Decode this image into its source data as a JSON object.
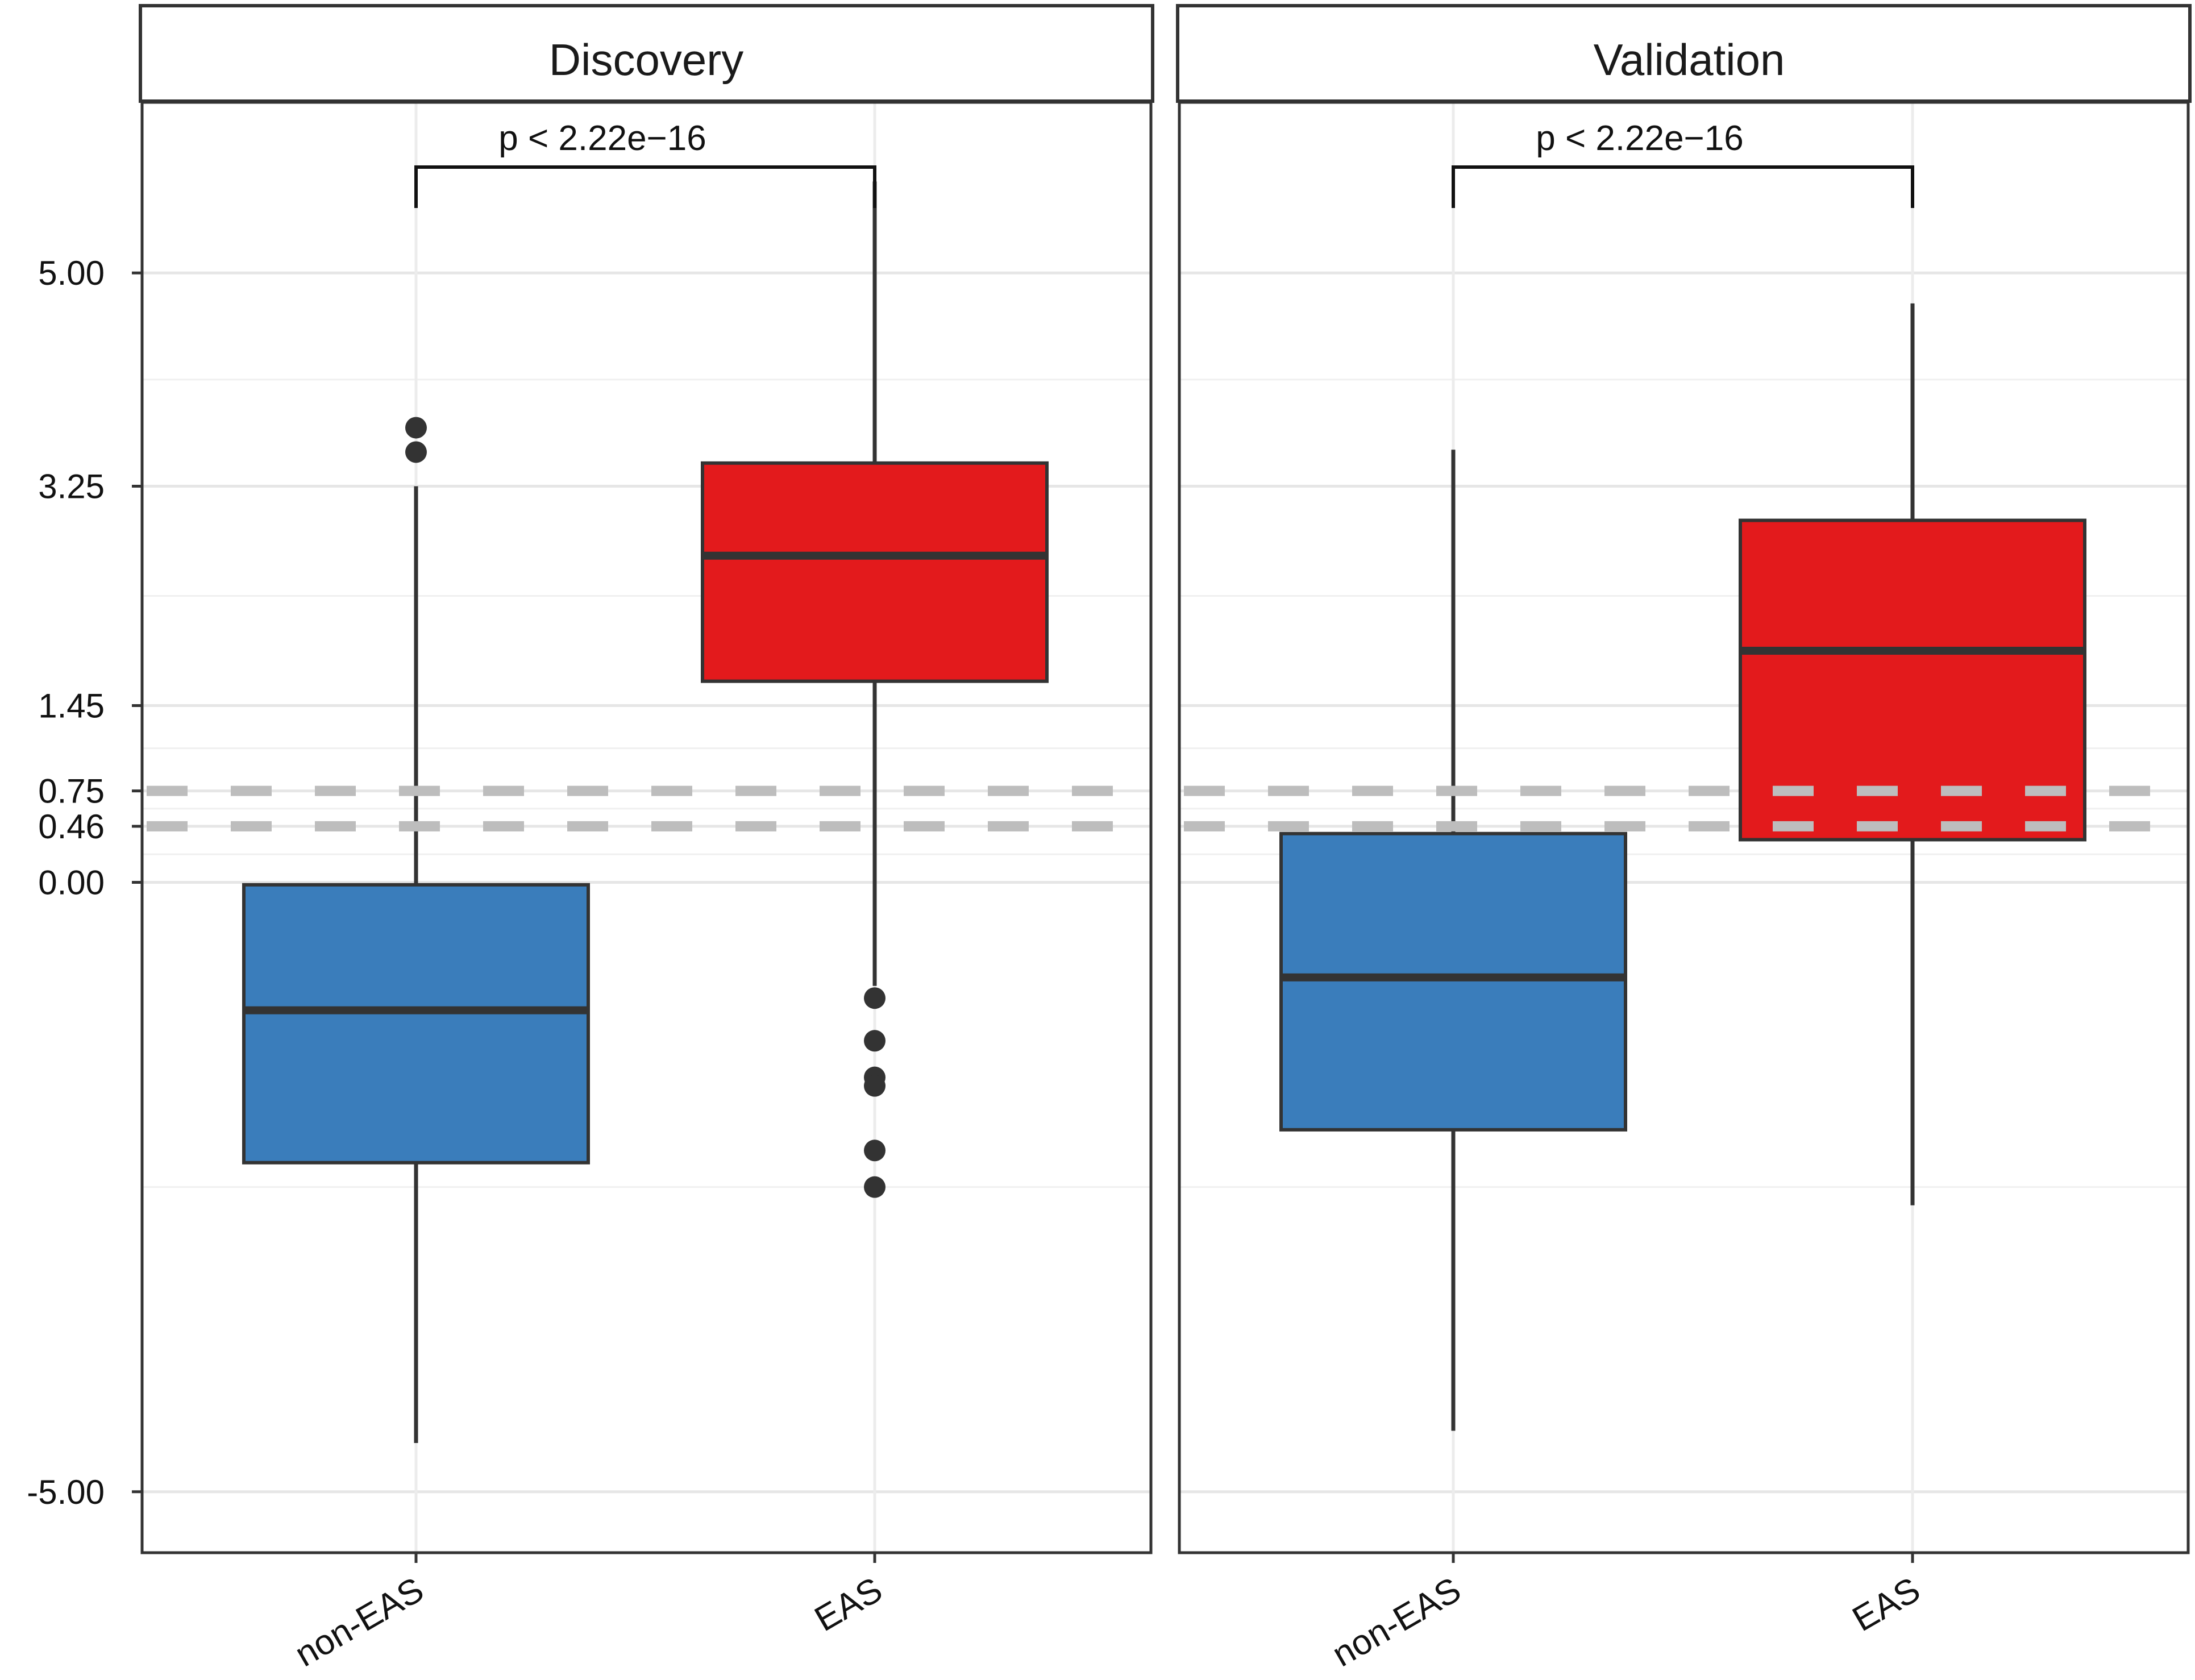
{
  "chart_data": {
    "type": "boxplot",
    "facets": [
      "Discovery",
      "Validation"
    ],
    "categories": [
      "non-EAS",
      "EAS"
    ],
    "y_ticks": [
      {
        "value": 5.0,
        "label": "5.00"
      },
      {
        "value": 3.25,
        "label": "3.25"
      },
      {
        "value": 1.45,
        "label": "1.45"
      },
      {
        "value": 0.75,
        "label": "0.75"
      },
      {
        "value": 0.46,
        "label": "0.46"
      },
      {
        "value": 0.0,
        "label": "0.00"
      },
      {
        "value": -5.0,
        "label": "-5.00"
      }
    ],
    "ylim": [
      -5.5,
      6.4
    ],
    "reference_lines": [
      0.75,
      0.46
    ],
    "colors": {
      "non-EAS": "#3a7dbb",
      "EAS": "#e31a1c",
      "reference": "#bdbdbd",
      "outline": "#333333"
    },
    "panels": [
      {
        "name": "Discovery",
        "p_value": "p < 2.22e−16",
        "boxes": [
          {
            "group": "non-EAS",
            "whisker_low": -4.6,
            "q1": -2.3,
            "median": -1.05,
            "q3": -0.02,
            "whisker_high": 3.25,
            "outliers": [
              3.73,
              3.53
            ]
          },
          {
            "group": "EAS",
            "whisker_low": -0.85,
            "q1": 1.65,
            "median": 2.68,
            "q3": 3.44,
            "whisker_high": 5.75,
            "outliers": [
              -0.95,
              -1.3,
              -1.6,
              -1.67,
              -2.2,
              -2.5
            ]
          }
        ]
      },
      {
        "name": "Validation",
        "p_value": "p < 2.22e−16",
        "boxes": [
          {
            "group": "non-EAS",
            "whisker_low": -4.5,
            "q1": -2.03,
            "median": -0.78,
            "q3": 0.4,
            "whisker_high": 3.55,
            "outliers": []
          },
          {
            "group": "EAS",
            "whisker_low": -2.65,
            "q1": 0.35,
            "median": 1.9,
            "q3": 2.97,
            "whisker_high": 4.75,
            "outliers": []
          }
        ]
      }
    ]
  }
}
